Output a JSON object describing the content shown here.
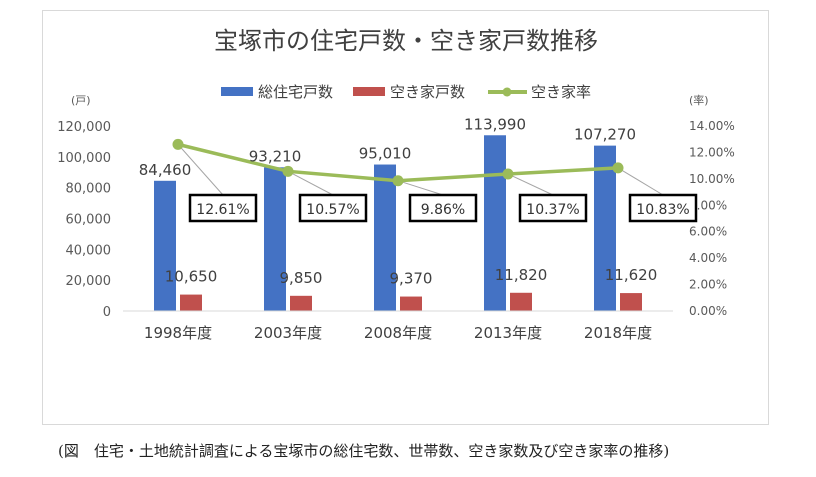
{
  "caption": "(図　住宅・土地統計調査による宝塚市の総住宅数、世帯数、空き家数及び空き家率の推移)",
  "chart_data": {
    "type": "bar",
    "title": "宝塚市の住宅戸数・空き家戸数推移",
    "categories": [
      "1998年度",
      "2003年度",
      "2008年度",
      "2013年度",
      "2018年度"
    ],
    "series": [
      {
        "name": "総住宅戸数",
        "type": "bar",
        "axis": "left",
        "color": "#4472c4",
        "values": [
          84460,
          93210,
          95010,
          113990,
          107270
        ],
        "labels": [
          "84,460",
          "93,210",
          "95,010",
          "113,990",
          "107,270"
        ]
      },
      {
        "name": "空き家戸数",
        "type": "bar",
        "axis": "left",
        "color": "#c0504d",
        "values": [
          10650,
          9850,
          9370,
          11820,
          11620
        ],
        "labels": [
          "10,650",
          "9,850",
          "9,370",
          "11,820",
          "11,620"
        ]
      },
      {
        "name": "空き家率",
        "type": "line",
        "axis": "right",
        "color": "#9bbb59",
        "values": [
          12.61,
          10.57,
          9.86,
          10.37,
          10.83
        ],
        "labels": [
          "12.61%",
          "10.57%",
          "9.86%",
          "10.37%",
          "10.83%"
        ]
      }
    ],
    "left_axis": {
      "unit": "(戸)",
      "range": [
        0,
        120000
      ],
      "ticks": [
        "0",
        "20,000",
        "40,000",
        "60,000",
        "80,000",
        "100,000",
        "120,000"
      ]
    },
    "right_axis": {
      "unit": "(率)",
      "range": [
        0,
        14
      ],
      "ticks": [
        "0.00%",
        "2.00%",
        "4.00%",
        "6.00%",
        "8.00%",
        "10.00%",
        "12.00%",
        "14.00%"
      ]
    },
    "legend": "top-center",
    "grid": false
  }
}
